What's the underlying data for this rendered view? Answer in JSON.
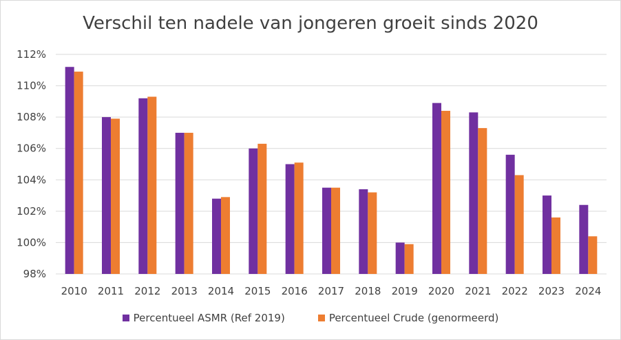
{
  "chart_data": {
    "type": "bar",
    "title": "Verschil ten nadele van jongeren groeit sinds 2020",
    "xlabel": "",
    "ylabel": "",
    "categories": [
      "2010",
      "2011",
      "2012",
      "2013",
      "2014",
      "2015",
      "2016",
      "2017",
      "2018",
      "2019",
      "2020",
      "2021",
      "2022",
      "2023",
      "2024"
    ],
    "series": [
      {
        "name": "Percentueel ASMR (Ref 2019)",
        "color": "#7030a0",
        "values": [
          111.2,
          108.0,
          109.2,
          107.0,
          102.8,
          106.0,
          105.0,
          103.5,
          103.4,
          100.0,
          108.9,
          108.3,
          105.6,
          103.0,
          102.4
        ]
      },
      {
        "name": "Percentueel Crude (genormeerd)",
        "color": "#ed7d31",
        "values": [
          110.9,
          107.9,
          109.3,
          107.0,
          102.9,
          106.3,
          105.1,
          103.5,
          103.2,
          99.9,
          108.4,
          107.3,
          104.3,
          101.6,
          100.4
        ]
      }
    ],
    "ylim": [
      98,
      112
    ],
    "yticks": [
      98,
      100,
      102,
      104,
      106,
      108,
      110,
      112
    ],
    "ytick_labels": [
      "98%",
      "100%",
      "102%",
      "104%",
      "106%",
      "108%",
      "110%",
      "112%"
    ],
    "grid": true,
    "legend_position": "bottom"
  }
}
